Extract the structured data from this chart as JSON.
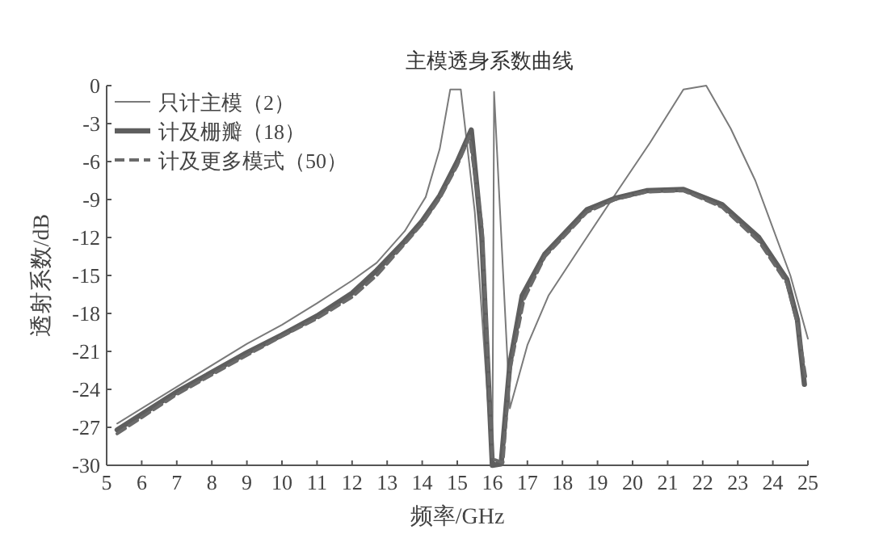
{
  "chart_data": {
    "type": "line",
    "title": "主模透身系数曲线",
    "xlabel": "频率/GHz",
    "ylabel": "透射系数/dB",
    "legend": "top left",
    "grid": false,
    "xlim": [
      5,
      25
    ],
    "xticks": [
      5,
      6,
      7,
      8,
      9,
      10,
      11,
      12,
      13,
      14,
      15,
      16,
      17,
      18,
      19,
      20,
      21,
      22,
      23,
      24,
      25
    ],
    "ylim": [
      -30,
      0
    ],
    "yticks": [
      -30,
      -27,
      -24,
      -21,
      -18,
      -15,
      -12,
      -9,
      -6,
      -3,
      0
    ],
    "series": [
      {
        "name": "只计主模（2）",
        "color": "#7a7a7a",
        "line_style": "solid",
        "x": [
          5.3,
          7,
          9,
          10,
          11,
          12,
          12.7,
          13.5,
          14.1,
          14.5,
          14.8,
          15.1,
          15.5,
          16.0,
          16.05,
          16.5,
          17.0,
          17.6,
          18.5,
          19.6,
          20.5,
          21.45,
          22.1,
          22.8,
          23.5,
          24.5,
          25
        ],
        "values": [
          -26.7,
          -23.8,
          -20.4,
          -18.9,
          -17.2,
          -15.4,
          -14.0,
          -11.5,
          -8.8,
          -5.0,
          -0.3,
          -0.3,
          -10,
          -30,
          -0.5,
          -25.5,
          -20.5,
          -16.6,
          -12.8,
          -8.2,
          -4.5,
          -0.3,
          0,
          -3.4,
          -7.5,
          -15,
          -20
        ]
      },
      {
        "name": "计及栅瓣（18）",
        "color": "#5e5e5e",
        "line_style": "solid",
        "x": [
          5.3,
          7,
          9,
          10,
          11,
          12,
          12.7,
          13.5,
          14,
          14.5,
          15,
          15.4,
          15.7,
          16.0,
          16.25,
          16.5,
          16.85,
          17.5,
          18.7,
          19.5,
          20.4,
          21.45,
          22.55,
          23.6,
          24.4,
          24.7,
          24.9
        ],
        "values": [
          -27.2,
          -24.2,
          -21.1,
          -19.7,
          -18.2,
          -16.4,
          -14.6,
          -12.3,
          -10.7,
          -8.7,
          -6.0,
          -3.5,
          -12,
          -30,
          -29.9,
          -22,
          -16.6,
          -13.3,
          -9.8,
          -8.9,
          -8.3,
          -8.2,
          -9.4,
          -12,
          -15.3,
          -18.5,
          -23.6
        ]
      },
      {
        "name": "计及更多模式（50）",
        "color": "#6a6a6a",
        "line_style": "dashed",
        "x": [
          5.3,
          7,
          9,
          10,
          11,
          12,
          12.7,
          13.5,
          14,
          14.5,
          15,
          15.35,
          15.7,
          16.0,
          16.3,
          16.5,
          16.9,
          17.5,
          18.7,
          19.5,
          20.4,
          21.45,
          22.55,
          23.6,
          24.4,
          24.7,
          24.95
        ],
        "values": [
          -27.5,
          -24.4,
          -21.3,
          -19.8,
          -18.4,
          -16.7,
          -15.0,
          -12.5,
          -10.9,
          -8.9,
          -6.3,
          -4.0,
          -11,
          -29.5,
          -29.8,
          -22.5,
          -16.9,
          -13.5,
          -10.0,
          -9.0,
          -8.4,
          -8.3,
          -9.6,
          -12.3,
          -15.6,
          -18.8,
          -23.3
        ]
      }
    ]
  }
}
